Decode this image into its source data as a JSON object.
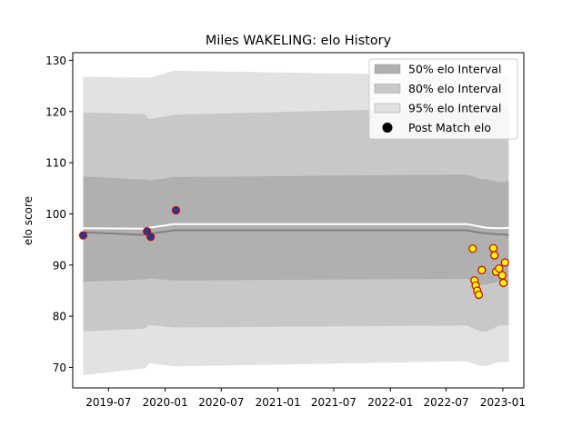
{
  "chart_data": {
    "type": "scatter",
    "title": "Miles WAKELING: elo History",
    "xlabel": "",
    "ylabel": "elo score",
    "xlim": [
      "2019-03-07",
      "2023-03-10"
    ],
    "ylim": [
      66,
      131.5
    ],
    "yticks": [
      70,
      80,
      90,
      100,
      110,
      120,
      130
    ],
    "xticks": [
      "2019-07",
      "2020-01",
      "2020-07",
      "2021-01",
      "2021-07",
      "2022-01",
      "2022-07",
      "2023-01"
    ],
    "grid": false,
    "legend_position": "top-right",
    "legend": [
      {
        "label": "50% elo Interval",
        "color": "#b0b0b0"
      },
      {
        "label": "80% elo Interval",
        "color": "#c8c8c8"
      },
      {
        "label": "95% elo Interval",
        "color": "#e2e2e2"
      },
      {
        "label": "Post Match elo",
        "color": "#000000"
      }
    ],
    "colors": {
      "band95": "#e2e2e2",
      "band80": "#c8c8c8",
      "band50": "#b0b0b0",
      "mean_line": "#808080",
      "upper_line": "#ffffff",
      "early_point_fill": "#1f3a93",
      "early_point_edge": "#cc0000",
      "late_point_fill": "#ffff00",
      "late_point_edge": "#cc0000"
    },
    "band_dates": [
      "2019-04-10",
      "2019-10-28",
      "2019-11-10",
      "2020-01-30",
      "2022-09-05",
      "2022-10-20",
      "2022-11-10",
      "2022-12-20",
      "2023-01-05",
      "2023-01-20"
    ],
    "band_95": {
      "upper": [
        126.8,
        126.6,
        126.6,
        128.0,
        127.0,
        127.0,
        127.0,
        127.0,
        127.0,
        127.0
      ],
      "lower": [
        68.5,
        69.8,
        70.8,
        70.2,
        71.2,
        70.3,
        70.3,
        71.0,
        71.0,
        71.0
      ]
    },
    "band_80": {
      "upper": [
        119.8,
        119.5,
        118.5,
        119.4,
        120.8,
        120.8,
        120.8,
        120.8,
        120.8,
        120.8
      ],
      "lower": [
        77.0,
        77.6,
        78.3,
        77.8,
        78.2,
        77.0,
        77.0,
        78.2,
        78.2,
        78.2
      ]
    },
    "band_50": {
      "upper": [
        107.3,
        106.7,
        106.5,
        107.2,
        107.7,
        106.8,
        106.8,
        106.2,
        106.2,
        106.6
      ],
      "lower": [
        86.7,
        87.2,
        87.4,
        87.0,
        87.3,
        86.2,
        86.2,
        86.8,
        86.8,
        86.8
      ]
    },
    "mean_line": [
      96.4,
      95.9,
      96.1,
      96.8,
      96.8,
      96.3,
      96.2,
      96.0,
      96.0,
      95.8
    ],
    "upper_line": [
      97.2,
      97.1,
      97.3,
      98.0,
      98.0,
      97.5,
      97.3,
      97.2,
      97.2,
      97.3
    ],
    "series": [
      {
        "name": "Post Match elo",
        "style": "early",
        "points": [
          {
            "x": "2019-04-10",
            "y": 95.8
          },
          {
            "x": "2019-11-03",
            "y": 96.6
          },
          {
            "x": "2019-11-15",
            "y": 95.5
          },
          {
            "x": "2020-02-05",
            "y": 100.7
          }
        ]
      },
      {
        "name": "Post Match elo",
        "style": "late",
        "points": [
          {
            "x": "2022-09-25",
            "y": 93.2
          },
          {
            "x": "2022-10-01",
            "y": 87.0
          },
          {
            "x": "2022-10-05",
            "y": 86.0
          },
          {
            "x": "2022-10-10",
            "y": 85.0
          },
          {
            "x": "2022-10-15",
            "y": 84.2
          },
          {
            "x": "2022-10-25",
            "y": 89.0
          },
          {
            "x": "2022-12-01",
            "y": 93.3
          },
          {
            "x": "2022-12-05",
            "y": 91.9
          },
          {
            "x": "2022-12-10",
            "y": 88.7
          },
          {
            "x": "2022-12-20",
            "y": 89.3
          },
          {
            "x": "2022-12-30",
            "y": 88.0
          },
          {
            "x": "2023-01-03",
            "y": 86.5
          },
          {
            "x": "2023-01-08",
            "y": 90.5
          }
        ]
      }
    ]
  }
}
